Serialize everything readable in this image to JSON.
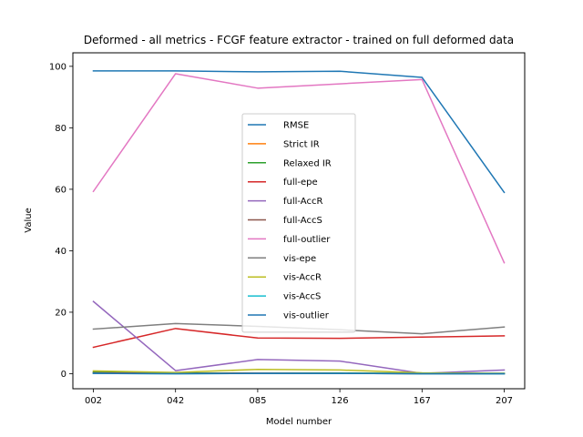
{
  "chart_data": {
    "type": "line",
    "title": "Deformed - all metrics - FCGF feature extractor -  trained on full deformed data",
    "xlabel": "Model number",
    "ylabel": "Value",
    "categories": [
      "002",
      "042",
      "085",
      "126",
      "167",
      "207"
    ],
    "ylim": [
      -4.9,
      104.4
    ],
    "yticks": [
      0,
      20,
      40,
      60,
      80,
      100
    ],
    "grid": false,
    "legend_position": "center",
    "series": [
      {
        "name": "RMSE",
        "color": "#1f77b4",
        "values": [
          98.5,
          98.5,
          98.2,
          98.4,
          96.4,
          59.0
        ]
      },
      {
        "name": "Strict IR",
        "color": "#ff7f0e",
        "values": [
          0.2,
          0.1,
          0.1,
          0.1,
          0.1,
          0.1
        ]
      },
      {
        "name": "Relaxed IR",
        "color": "#2ca02c",
        "values": [
          0.5,
          0.2,
          0.2,
          0.2,
          0.1,
          0.1
        ]
      },
      {
        "name": "full-epe",
        "color": "#d62728",
        "values": [
          8.6,
          14.7,
          11.6,
          11.5,
          11.9,
          12.3
        ]
      },
      {
        "name": "full-AccR",
        "color": "#9467bd",
        "values": [
          23.5,
          1.0,
          4.6,
          4.1,
          0.1,
          1.2
        ]
      },
      {
        "name": "full-AccS",
        "color": "#8c564b",
        "values": [
          0.3,
          0.1,
          0.2,
          0.1,
          0.0,
          0.0
        ]
      },
      {
        "name": "full-outlier",
        "color": "#e377c2",
        "values": [
          59.3,
          97.6,
          92.9,
          94.3,
          95.7,
          36.1
        ]
      },
      {
        "name": "vis-epe",
        "color": "#7f7f7f",
        "values": [
          14.5,
          16.3,
          15.4,
          14.3,
          13.0,
          15.2
        ]
      },
      {
        "name": "vis-AccR",
        "color": "#bcbd22",
        "values": [
          0.9,
          0.4,
          1.4,
          1.2,
          0.3,
          0.1
        ]
      },
      {
        "name": "vis-AccS",
        "color": "#17becf",
        "values": [
          0.1,
          0.0,
          0.1,
          0.1,
          0.0,
          0.0
        ]
      },
      {
        "name": "vis-outlier",
        "color": "#1f77b4",
        "values": [
          0.1,
          0.0,
          0.1,
          0.1,
          0.0,
          0.0
        ]
      }
    ]
  }
}
